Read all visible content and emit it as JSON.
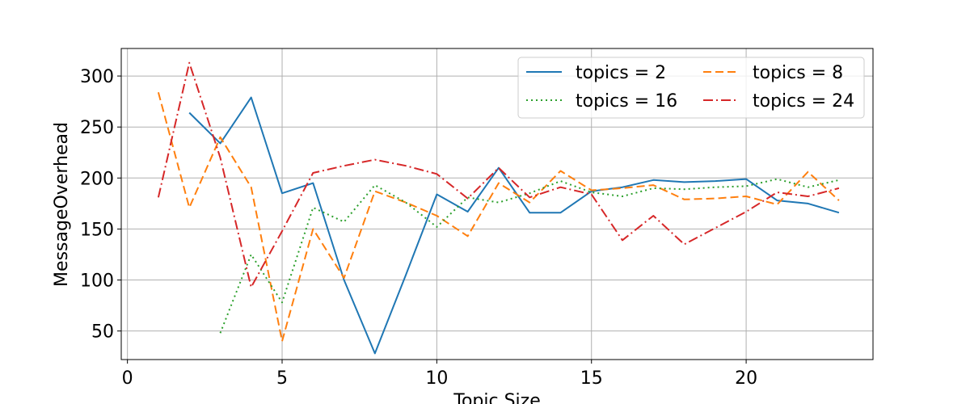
{
  "chart_data": {
    "type": "line",
    "xlabel": "Topic Size",
    "ylabel": "MessageOverhead",
    "xlim": [
      -0.2,
      24.1
    ],
    "ylim": [
      22,
      327
    ],
    "xticks": [
      0,
      5,
      10,
      15,
      20
    ],
    "yticks": [
      50,
      100,
      150,
      200,
      250,
      300
    ],
    "grid": true,
    "legend_position": "top-right",
    "series": [
      {
        "name": "topics = 2",
        "color": "#1f77b4",
        "dash": "solid",
        "x": [
          2,
          3,
          4,
          5,
          6,
          7,
          8,
          9,
          10,
          11,
          12,
          13,
          14,
          15,
          16,
          17,
          18,
          19,
          20,
          21,
          22,
          23
        ],
        "y": [
          264,
          234,
          279,
          185,
          195,
          100,
          28,
          105,
          184,
          167,
          210,
          166,
          166,
          187,
          191,
          198,
          196,
          197,
          199,
          178,
          175,
          166
        ]
      },
      {
        "name": "topics = 8",
        "color": "#ff7f0e",
        "dash": "dashed",
        "x": [
          1,
          2,
          3,
          4,
          5,
          6,
          7,
          8,
          9,
          10,
          11,
          12,
          13,
          14,
          15,
          16,
          17,
          18,
          19,
          20,
          21,
          22,
          23
        ],
        "y": [
          284,
          171,
          240,
          191,
          40,
          150,
          102,
          187,
          176,
          163,
          143,
          195,
          176,
          207,
          188,
          190,
          193,
          179,
          180,
          182,
          174,
          206,
          178
        ]
      },
      {
        "name": "topics = 16",
        "color": "#2ca02c",
        "dash": "dotted",
        "x": [
          3,
          4,
          5,
          6,
          7,
          8,
          9,
          10,
          11,
          12,
          13,
          14,
          15,
          16,
          17,
          18,
          19,
          20,
          21,
          22,
          23
        ],
        "y": [
          48,
          125,
          78,
          171,
          157,
          193,
          176,
          152,
          181,
          176,
          185,
          197,
          186,
          182,
          190,
          189,
          191,
          192,
          199,
          191,
          198
        ]
      },
      {
        "name": "topics = 24",
        "color": "#d62728",
        "dash": "dashdot",
        "x": [
          1,
          2,
          3,
          4,
          5,
          6,
          7,
          8,
          9,
          10,
          11,
          12,
          13,
          14,
          15,
          16,
          17,
          18,
          19,
          20,
          21,
          22,
          23
        ],
        "y": [
          181,
          313,
          220,
          93,
          148,
          205,
          212,
          218,
          212,
          204,
          180,
          210,
          181,
          191,
          184,
          139,
          163,
          135,
          151,
          167,
          186,
          182,
          190
        ]
      }
    ]
  }
}
